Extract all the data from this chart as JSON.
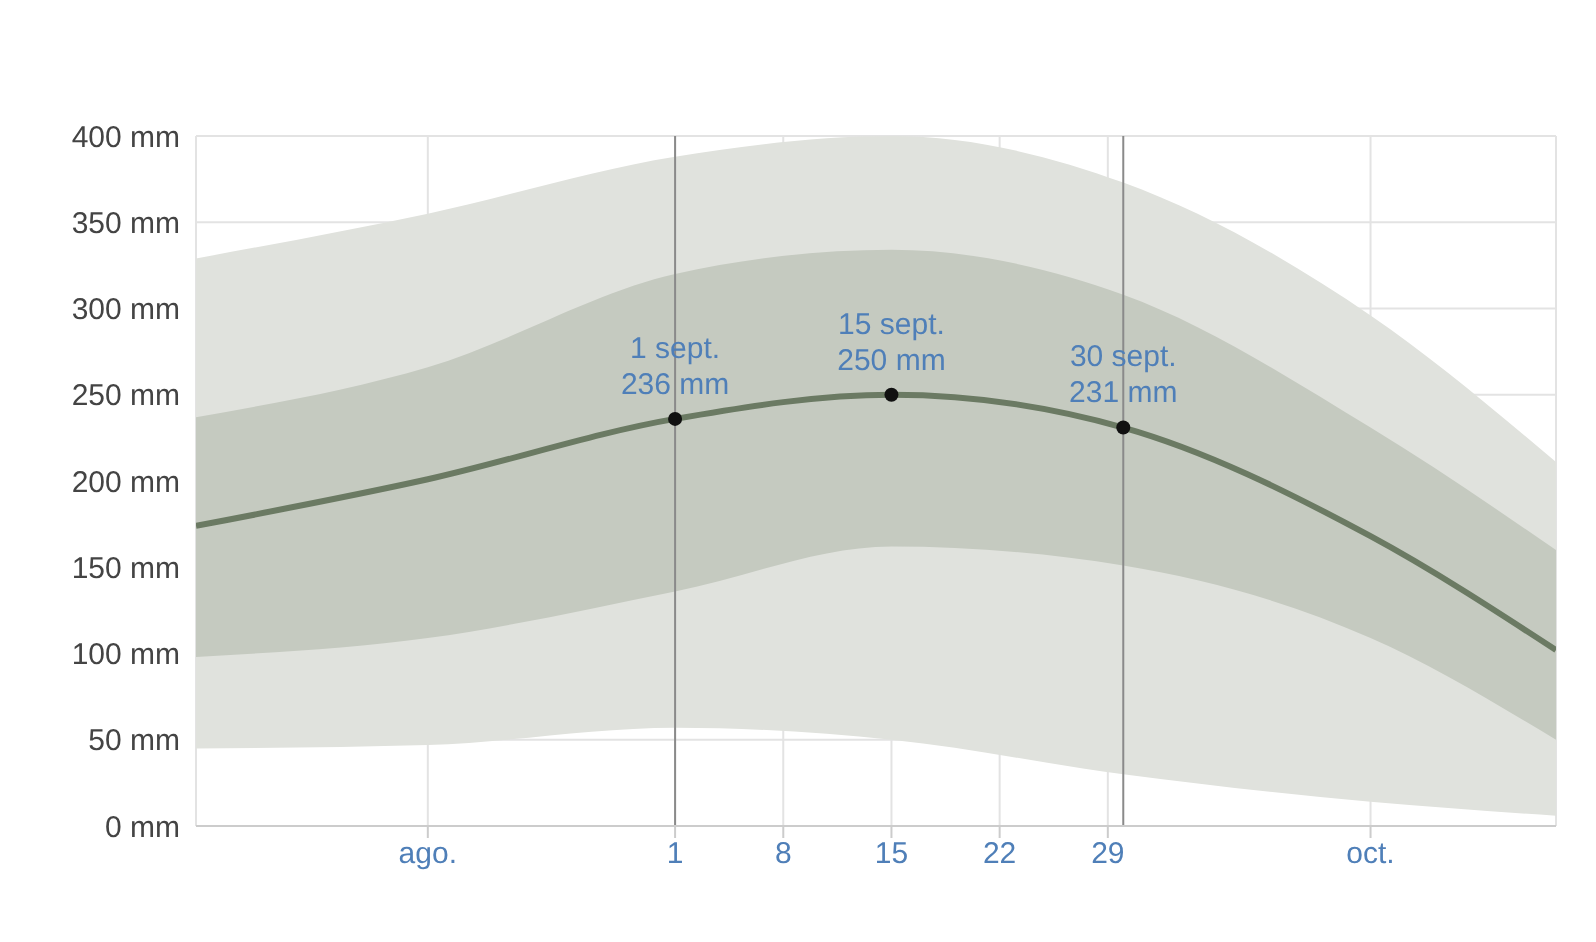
{
  "chart_data": {
    "type": "line",
    "x": [
      "--08-01",
      "--08-16",
      "--09-01",
      "--09-15",
      "--09-30",
      "--10-16",
      "--10-28"
    ],
    "xlim": [
      "--08-01",
      "--10-28"
    ],
    "xticks": [
      {
        "value": "--08-16",
        "label": "ago."
      },
      {
        "value": "--09-01",
        "label": "1"
      },
      {
        "value": "--09-08",
        "label": "8"
      },
      {
        "value": "--09-15",
        "label": "15"
      },
      {
        "value": "--09-22",
        "label": "22"
      },
      {
        "value": "--09-29",
        "label": "29"
      },
      {
        "value": "--10-16",
        "label": "oct."
      }
    ],
    "ylim": [
      0,
      400
    ],
    "yticks": [
      {
        "value": 0,
        "label": "0 mm"
      },
      {
        "value": 50,
        "label": "50 mm"
      },
      {
        "value": 100,
        "label": "100 mm"
      },
      {
        "value": 150,
        "label": "150 mm"
      },
      {
        "value": 200,
        "label": "200 mm"
      },
      {
        "value": 250,
        "label": "250 mm"
      },
      {
        "value": 300,
        "label": "300 mm"
      },
      {
        "value": 350,
        "label": "350 mm"
      },
      {
        "value": 400,
        "label": "400 mm"
      }
    ],
    "grid": true,
    "series": [
      {
        "type": "area",
        "color": "#e0e2dd",
        "values": [
          null,
          null,
          null,
          null,
          null,
          null,
          null
        ],
        "lower": [
          45,
          47,
          57,
          50,
          30,
          14,
          6
        ],
        "upper": [
          329,
          355,
          388,
          400,
          373,
          296,
          211
        ]
      },
      {
        "color": "#6b7a63",
        "values": [
          174,
          201,
          236,
          250,
          231,
          168,
          102
        ],
        "lower": [
          98,
          109,
          136,
          162,
          151,
          109,
          50
        ],
        "upper": [
          237,
          266,
          320,
          334,
          308,
          231,
          160
        ]
      },
      {
        "type": "scatter",
        "color": "#111111",
        "x": [
          "--09-01",
          "--09-15",
          "--09-30"
        ],
        "values": [
          236,
          250,
          231
        ],
        "value_labels": [
          "1 sept.\n236 mm",
          "15 sept.\n250 mm",
          "30 sept.\n231 mm"
        ]
      }
    ],
    "ref_lines": [
      {
        "axis": "x",
        "value": "--09-01",
        "color": "#8a8a8a"
      },
      {
        "axis": "x",
        "value": "--09-30",
        "color": "#8a8a8a"
      }
    ]
  }
}
